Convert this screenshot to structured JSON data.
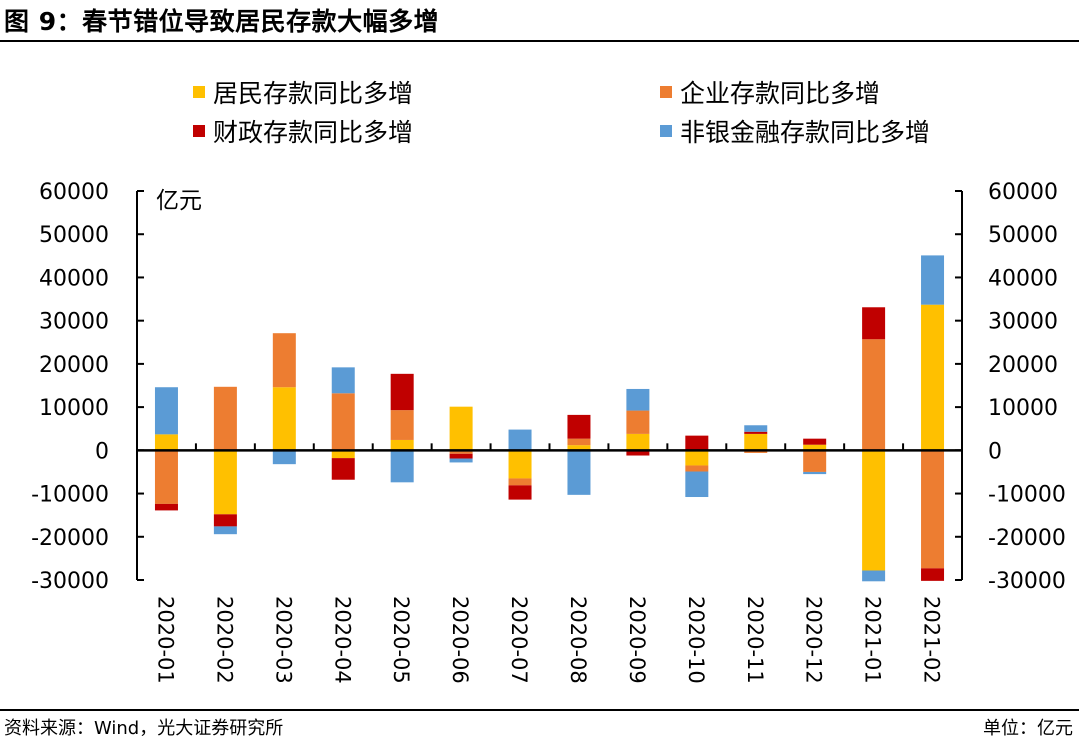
{
  "header": {
    "title": "图 9：春节错位导致居民存款大幅多增"
  },
  "footer": {
    "source": "资料来源：Wind，光大证券研究所",
    "unit": "单位：亿元"
  },
  "chart_data": {
    "type": "bar",
    "stacked": true,
    "title": "图 9：春节错位导致居民存款大幅多增",
    "xlabel": "",
    "ylabel": "亿元",
    "ylim": [
      -30000,
      60000
    ],
    "yticks": [
      60000,
      50000,
      40000,
      30000,
      20000,
      10000,
      0,
      -10000,
      -20000,
      -30000
    ],
    "ytick_labels": [
      "60000",
      "50000",
      "40000",
      "30000",
      "20000",
      "10000",
      "0",
      "-10000",
      "-20000",
      "-30000"
    ],
    "secondary_y": true,
    "grid": false,
    "legend_position": "top",
    "categories": [
      "2020-01",
      "2020-02",
      "2020-03",
      "2020-04",
      "2020-05",
      "2020-06",
      "2020-07",
      "2020-08",
      "2020-09",
      "2020-10",
      "2020-11",
      "2020-12",
      "2021-01",
      "2021-02"
    ],
    "series": [
      {
        "name": "居民存款同比多增",
        "color": "#FFC000",
        "values": [
          3700,
          -14800,
          14600,
          -1800,
          2400,
          10100,
          -6500,
          1200,
          3800,
          -3500,
          3800,
          1300,
          -27800,
          33700
        ]
      },
      {
        "name": "企业存款同比多增",
        "color": "#ED7D31",
        "values": [
          -12400,
          14700,
          12500,
          13200,
          6900,
          -800,
          -1600,
          1500,
          5400,
          -1400,
          -600,
          -5000,
          25700,
          -27300
        ]
      },
      {
        "name": "财政存款同比多增",
        "color": "#C00000",
        "values": [
          -1500,
          -2800,
          0,
          -5000,
          8400,
          -1100,
          -3300,
          5500,
          -1200,
          3400,
          500,
          1400,
          7400,
          -2900
        ]
      },
      {
        "name": "非银金融存款同比多增",
        "color": "#5B9BD5",
        "values": [
          10900,
          -1800,
          -3200,
          6000,
          -7400,
          -900,
          4800,
          -10300,
          5000,
          -5900,
          1500,
          -500,
          -2500,
          11400
        ]
      }
    ]
  }
}
